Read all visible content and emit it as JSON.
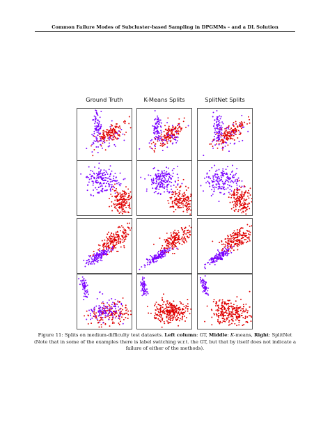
{
  "header": {
    "running_title": "Common Failure Modes of Subcluster-based Sampling in DPGMMs – and a DL Solution"
  },
  "figure": {
    "column_titles": [
      "Ground Truth",
      "K-Means Splits",
      "SplitNet Splits"
    ],
    "colors": {
      "cluster_a": "#e00000",
      "cluster_b": "#7a00ff"
    },
    "caption": {
      "figure_label": "Figure 11:",
      "text_1": " Splits on medium-difficulty test datasets. ",
      "left_label": "Left column",
      "text_2": ": GT, ",
      "middle_label": "Middle",
      "text_3": ": ",
      "k_letter": "K",
      "text_4": "-means, ",
      "right_label": "Right",
      "text_5": ": SplitNet",
      "note": "(Note that in some of the examples there is label switching w.r.t. the GT, but that by itself does not indicate a failure of either of the methods)."
    }
  }
}
